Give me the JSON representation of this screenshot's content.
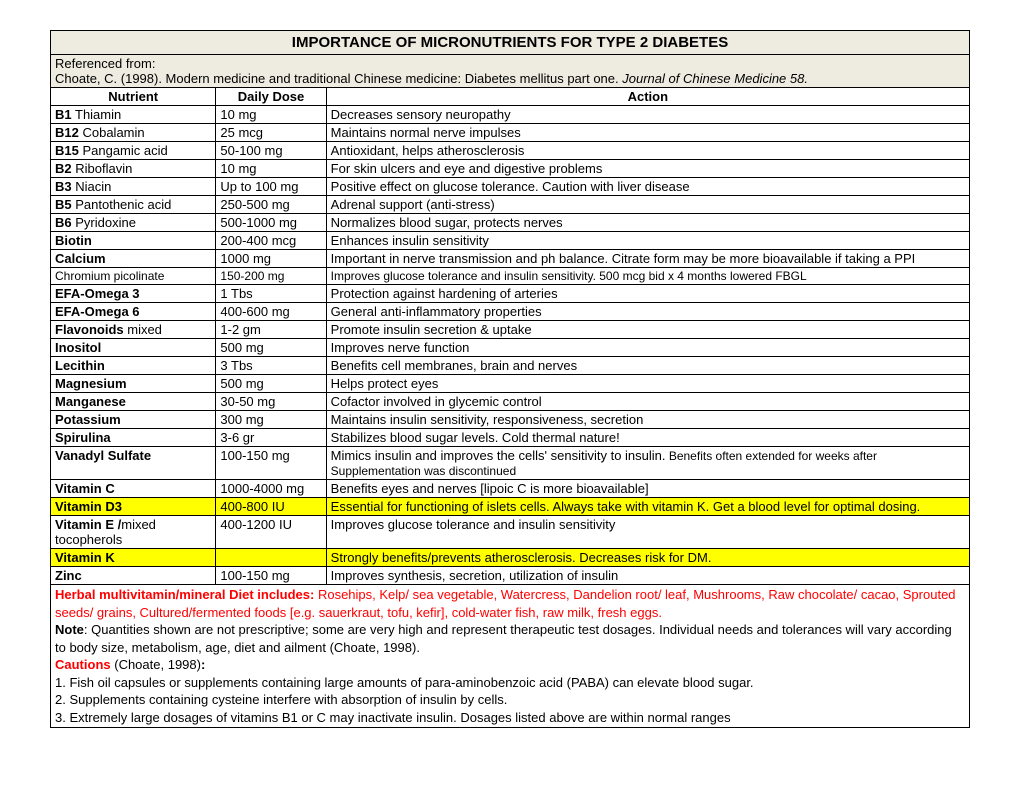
{
  "title": "IMPORTANCE OF MICRONUTRIENTS FOR TYPE 2 DIABETES",
  "reference_label": "Referenced from:",
  "reference_text": "Choate, C. (1998). Modern medicine and traditional Chinese medicine: Diabetes mellitus part one. ",
  "reference_italic": "Journal of Chinese Medicine 58.",
  "headers": {
    "nutrient": "Nutrient",
    "dose": "Daily Dose",
    "action": "Action"
  },
  "rows": [
    {
      "nb": "B1",
      "nr": " Thiamin",
      "dose": "10 mg",
      "action": "Decreases sensory neuropathy"
    },
    {
      "nb": "B12",
      "nr": " Cobalamin",
      "dose": "25 mcg",
      "action": "Maintains normal nerve impulses"
    },
    {
      "nb": "B15",
      "nr": " Pangamic acid",
      "dose": "50-100 mg",
      "action": "Antioxidant, helps atherosclerosis"
    },
    {
      "nb": "B2",
      "nr": " Riboflavin",
      "dose": "10 mg",
      "action": "For skin ulcers and eye and digestive problems"
    },
    {
      "nb": "B3",
      "nr": " Niacin",
      "dose": "Up to 100 mg",
      "action": "Positive effect on glucose tolerance. Caution with liver disease"
    },
    {
      "nb": "B5",
      "nr": " Pantothenic acid",
      "dose": "250-500 mg",
      "action": "Adrenal support (anti-stress)"
    },
    {
      "nb": "B6",
      "nr": " Pyridoxine",
      "dose": "500-1000 mg",
      "action": "Normalizes blood sugar, protects nerves"
    },
    {
      "nb": "Biotin",
      "nr": "",
      "dose": "200-400 mcg",
      "action": "Enhances insulin sensitivity"
    },
    {
      "nb": "Calcium",
      "nr": "",
      "dose": "1000 mg",
      "action": "Important in nerve transmission and ph balance. Citrate form may be more bioavailable if taking a PPI"
    },
    {
      "nb": "Chromium picolinate",
      "nr": "",
      "dose": "150-200 mg",
      "action": "Improves glucose tolerance and insulin sensitivity. 500 mcg bid x 4 months lowered FBGL",
      "plain": true,
      "small": true
    },
    {
      "nb": "EFA-Omega 3",
      "nr": "",
      "dose": "1 Tbs",
      "action": "Protection against hardening of arteries"
    },
    {
      "nb": "EFA-Omega 6",
      "nr": "",
      "dose": "400-600 mg",
      "action": "General anti-inflammatory properties"
    },
    {
      "nb": "Flavonoids",
      "nr": " mixed",
      "dose": "1-2 gm",
      "action": "Promote insulin secretion & uptake"
    },
    {
      "nb": "Inositol",
      "nr": "",
      "dose": "500 mg",
      "action": "Improves nerve function"
    },
    {
      "nb": "Lecithin",
      "nr": "",
      "dose": "3 Tbs",
      "action": "Benefits cell membranes, brain and nerves"
    },
    {
      "nb": "Magnesium",
      "nr": "",
      "dose": "500 mg",
      "action": "Helps protect eyes"
    },
    {
      "nb": "Manganese",
      "nr": "",
      "dose": "30-50 mg",
      "action": "Cofactor involved in glycemic control"
    },
    {
      "nb": "Potassium",
      "nr": "",
      "dose": "300 mg",
      "action": "Maintains insulin sensitivity, responsiveness, secretion"
    },
    {
      "nb": "Spirulina",
      "nr": "",
      "dose": "3-6 gr",
      "action": "Stabilizes blood sugar levels. Cold thermal nature!"
    },
    {
      "nb": "Vanadyl Sulfate",
      "nr": "",
      "dose": "100-150 mg",
      "action": "Mimics insulin and improves the cells' sensitivity to insulin.",
      "action_extra": " Benefits often extended for weeks after Supplementation was discontinued"
    },
    {
      "nb": "Vitamin C",
      "nr": "",
      "dose": "1000-4000 mg",
      "action": "Benefits eyes and nerves [lipoic C is more bioavailable]"
    },
    {
      "nb": "Vitamin D3",
      "nr": "",
      "dose": "400-800 IU",
      "action": "Essential for functioning of islets cells. Always take with vitamin K. Get a blood level for optimal dosing.",
      "highlight": true
    },
    {
      "nb": "Vitamin E /",
      "nr": "mixed tocopherols",
      "dose": "400-1200 IU",
      "action": "Improves glucose tolerance and insulin sensitivity"
    },
    {
      "nb": "Vitamin K",
      "nr": "",
      "dose": "",
      "action": "Strongly benefits/prevents atherosclerosis. Decreases risk for DM.",
      "highlight": true
    },
    {
      "nb": "Zinc",
      "nr": "",
      "dose": "100-150 mg",
      "action": "Improves synthesis, secretion, utilization of insulin"
    }
  ],
  "notes": {
    "herbal_label": "Herbal multivitamin/mineral Diet includes:",
    "herbal_text": " Rosehips, Kelp/ sea vegetable, Watercress, Dandelion root/ leaf, Mushrooms, Raw chocolate/ cacao, Sprouted seeds/ grains, Cultured/fermented foods [e.g. sauerkraut, tofu, kefir], cold-water fish, raw milk, fresh eggs.",
    "note_label": "Note",
    "note_text": ": Quantities shown are not prescriptive; some are very high and represent therapeutic test dosages. Individual needs and tolerances will vary according to body size, metabolism, age, diet and ailment (Choate, 1998).",
    "cautions_label": "Cautions",
    "cautions_suffix": " (Choate, 1998)",
    "cautions_colon": ":",
    "c1": "1. Fish oil capsules or supplements containing large amounts of para-aminobenzoic acid (PABA) can elevate blood sugar.",
    "c2": "2. Supplements containing cysteine interfere with absorption of insulin by cells.",
    "c3": "3. Extremely large dosages of vitamins B1 or C may inactivate insulin. Dosages listed above are within normal ranges"
  }
}
